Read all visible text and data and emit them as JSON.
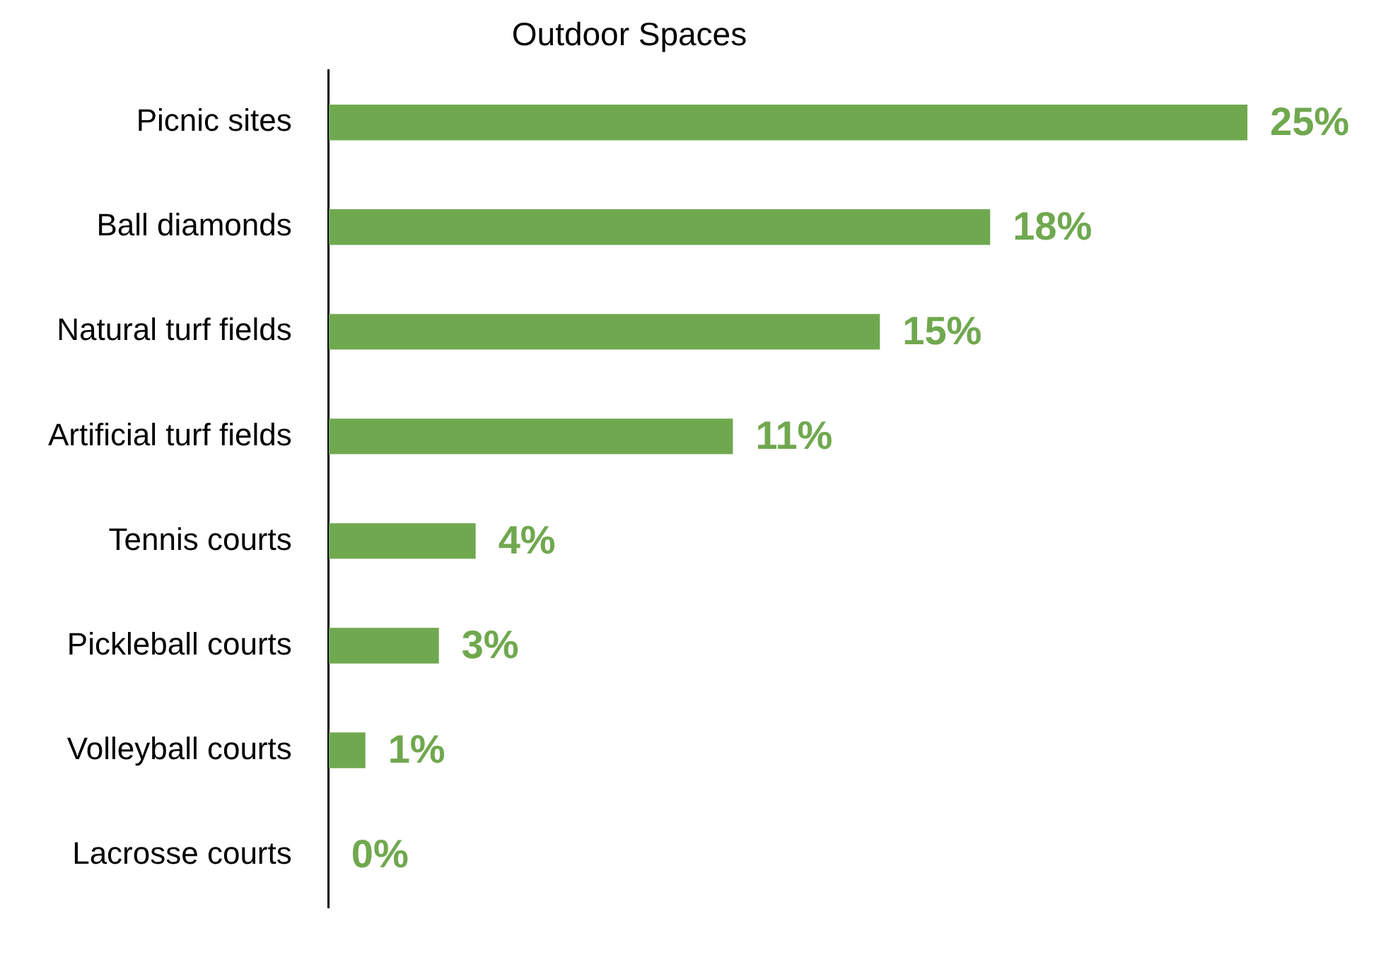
{
  "chart_data": {
    "type": "bar",
    "orientation": "horizontal",
    "title": "Outdoor Spaces",
    "categories": [
      "Picnic sites",
      "Ball diamonds",
      "Natural turf fields",
      "Artificial turf fields",
      "Tennis courts",
      "Pickleball courts",
      "Volleyball courts",
      "Lacrosse courts"
    ],
    "values": [
      25,
      18,
      15,
      11,
      4,
      3,
      1,
      0
    ],
    "value_labels": [
      "25%",
      "18%",
      "15%",
      "11%",
      "4%",
      "3%",
      "1%",
      "0%"
    ],
    "color": "#70a84f",
    "grid": false,
    "legend": false,
    "tick_labels": "y"
  }
}
